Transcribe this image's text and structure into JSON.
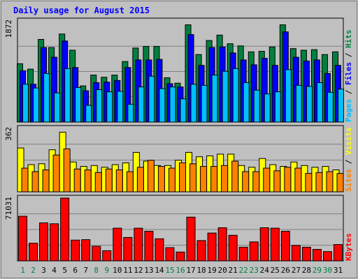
{
  "chart_data": {
    "type": "bar",
    "title": "Daily usage for August 2015",
    "categories": [
      "1",
      "2",
      "3",
      "4",
      "5",
      "6",
      "7",
      "8",
      "9",
      "10",
      "11",
      "12",
      "13",
      "14",
      "15",
      "16",
      "17",
      "18",
      "19",
      "20",
      "21",
      "22",
      "23",
      "24",
      "25",
      "26",
      "27",
      "28",
      "29",
      "30",
      "31"
    ],
    "weekend_categories": [
      "1",
      "2",
      "8",
      "9",
      "15",
      "16",
      "22",
      "23",
      "29",
      "30"
    ],
    "panels": [
      {
        "id": "hits-files-pages",
        "ylim": [
          0,
          1872
        ],
        "max_label": "1872",
        "side_labels": [
          "Pages",
          "Files",
          "Hits"
        ],
        "series": [
          {
            "name": "Hits",
            "color": "#008040",
            "values": [
              1080,
              980,
              1530,
              1380,
              1630,
              1330,
              670,
              870,
              830,
              870,
              1120,
              1370,
              1400,
              1400,
              820,
              720,
              1800,
              1250,
              1510,
              1610,
              1450,
              1410,
              1300,
              1310,
              1390,
              1800,
              1360,
              1330,
              1340,
              1250,
              1300
            ]
          },
          {
            "name": "Files",
            "color": "#0000ff",
            "values": [
              950,
              700,
              1380,
              1200,
              1500,
              1010,
              580,
              730,
              740,
              770,
              1010,
              1150,
              1150,
              1160,
              710,
              650,
              1620,
              1050,
              1380,
              1390,
              1280,
              1150,
              1060,
              1180,
              1050,
              1670,
              1200,
              1130,
              1150,
              900,
              1050
            ]
          },
          {
            "name": "Pages",
            "color": "#00c0ff",
            "values": [
              700,
              630,
              900,
              540,
              990,
              640,
              310,
              600,
              560,
              570,
              330,
              650,
              850,
              620,
              650,
              430,
              700,
              680,
              870,
              940,
              990,
              730,
              590,
              520,
              560,
              970,
              680,
              660,
              730,
              550,
              610
            ]
          }
        ]
      },
      {
        "id": "visits-sites",
        "ylim": [
          0,
          362
        ],
        "max_label": "362",
        "side_labels": [
          "Sites",
          "Visits"
        ],
        "series": [
          {
            "name": "Visits",
            "color": "#ffff00",
            "values": [
              250,
              155,
              160,
              240,
              340,
              170,
              145,
              150,
              140,
              155,
              165,
              225,
              175,
              150,
              150,
              180,
              225,
              200,
              205,
              215,
              215,
              150,
              140,
              190,
              155,
              145,
              170,
              150,
              140,
              145,
              125
            ]
          },
          {
            "name": "Sites",
            "color": "#ff8000",
            "values": [
              135,
              115,
              125,
              210,
              245,
              130,
              125,
              110,
              130,
              125,
              115,
              140,
              180,
              145,
              135,
              165,
              160,
              145,
              145,
              150,
              175,
              115,
              115,
              135,
              120,
              140,
              135,
              105,
              110,
              115,
              105
            ]
          }
        ]
      },
      {
        "id": "kbytes",
        "ylim": [
          0,
          71031
        ],
        "max_label": "71031",
        "side_labels": [
          "KBytes"
        ],
        "series": [
          {
            "name": "KBytes",
            "color": "#ff0000",
            "values": [
              50500,
              20000,
              43000,
              42000,
              71031,
              23500,
              24000,
              16500,
              11500,
              37000,
              26500,
              37000,
              33500,
              25000,
              15000,
              10000,
              49500,
              23000,
              31500,
              37500,
              29000,
              15500,
              21500,
              37500,
              37000,
              33500,
              17500,
              15500,
              13000,
              10500,
              18500
            ]
          }
        ]
      }
    ]
  }
}
